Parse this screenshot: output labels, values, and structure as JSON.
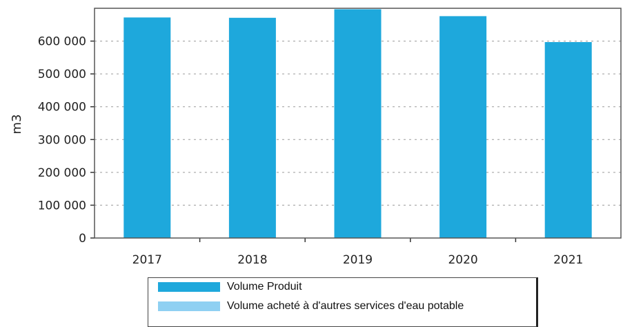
{
  "chart_data": {
    "type": "bar",
    "title": "",
    "xlabel": "",
    "ylabel": "m3",
    "categories": [
      "2017",
      "2018",
      "2019",
      "2020",
      "2021"
    ],
    "series": [
      {
        "name": "Volume Produit",
        "values": [
          672000,
          671000,
          697000,
          676000,
          597000
        ],
        "color": "#1ea8dc"
      },
      {
        "name": "Volume acheté à d'autres services d'eau potable",
        "values": [
          0,
          0,
          0,
          0,
          0
        ],
        "color": "#8fd0f2"
      }
    ],
    "ylim": [
      0,
      700000
    ],
    "yticks": [
      0,
      100000,
      200000,
      300000,
      400000,
      500000,
      600000
    ],
    "ytick_labels": [
      "0",
      "100 000",
      "200 000",
      "300 000",
      "400 000",
      "500 000",
      "600 000"
    ],
    "grid": true,
    "legend_position": "bottom"
  }
}
